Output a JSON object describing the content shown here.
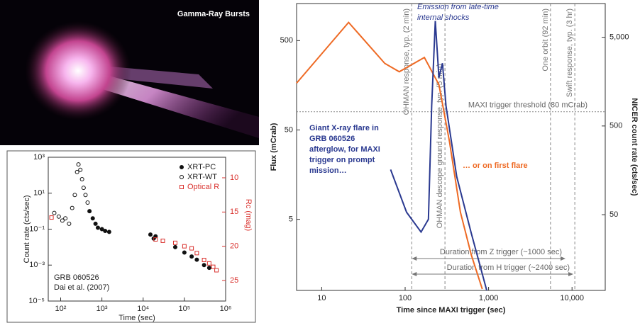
{
  "image": {
    "title": "Gamma-Ray Bursts"
  },
  "chart_data": [
    {
      "type": "scatter",
      "xlabel": "Time (sec)",
      "ylabel": "Count rate (cts/sec)",
      "y2label": "Rc (mag)",
      "annotations": [
        "GRB 060526",
        "Dai et al. (2007)"
      ],
      "xscale": "log",
      "yscale": "log",
      "xlim": [
        50,
        1000000
      ],
      "xticks": [
        {
          "value": 100,
          "label": "10²"
        },
        {
          "value": 1000,
          "label": "10³"
        },
        {
          "value": 10000,
          "label": "10⁴"
        },
        {
          "value": 100000,
          "label": "10⁵"
        },
        {
          "value": 1000000,
          "label": "10⁶"
        }
      ],
      "ylim": [
        1e-05,
        1000
      ],
      "yticks": [
        {
          "value": 1000,
          "label": "10³"
        },
        {
          "value": 10,
          "label": "10¹"
        },
        {
          "value": 0.1,
          "label": "10⁻¹"
        },
        {
          "value": 0.001,
          "label": "10⁻³"
        },
        {
          "value": 1e-05,
          "label": "10⁻⁵"
        }
      ],
      "y2lim": [
        28,
        7
      ],
      "y2ticks": [
        10,
        15,
        20,
        25
      ],
      "y2color": "#d9302c",
      "series": [
        {
          "name": "XRT-PC",
          "color": "#111111",
          "marker": "filled-circle",
          "x": [
            500,
            600,
            700,
            800,
            1000,
            1200,
            1500,
            15000,
            18000,
            20000,
            60000,
            100000,
            150000,
            200000,
            300000,
            400000
          ],
          "values": [
            1,
            0.4,
            0.2,
            0.12,
            0.1,
            0.08,
            0.07,
            0.05,
            0.03,
            0.04,
            0.01,
            0.005,
            0.003,
            0.002,
            0.001,
            0.0007
          ]
        },
        {
          "name": "XRT-WT",
          "color": "#111111",
          "marker": "open-circle",
          "x": [
            70,
            90,
            110,
            130,
            160,
            190,
            220,
            250,
            270,
            300,
            330,
            360,
            400,
            450
          ],
          "values": [
            0.8,
            0.5,
            0.3,
            0.4,
            0.2,
            1.5,
            8,
            150,
            400,
            200,
            60,
            20,
            8,
            3
          ]
        },
        {
          "name": "Optical R",
          "color": "#d9302c",
          "marker": "open-square",
          "axis": "y2",
          "x": [
            60,
            20000,
            30000,
            60000,
            100000,
            150000,
            200000,
            300000,
            400000,
            500000,
            600000
          ],
          "values": [
            15.8,
            19,
            19.2,
            19.5,
            20,
            20.3,
            21,
            22,
            22.5,
            23,
            23.5
          ]
        }
      ]
    },
    {
      "type": "line",
      "xlabel": "Time since MAXI trigger (sec)",
      "ylabel": "Flux (mCrab)",
      "y2label": "NICER count rate (cts/sec)",
      "xscale": "log",
      "yscale": "log",
      "xlim": [
        5,
        25000
      ],
      "xticks": [
        10,
        100,
        {
          "value": 1000,
          "label": "1,000"
        },
        {
          "value": 10000,
          "label": "10,000"
        }
      ],
      "ylim": [
        0.8,
        1300
      ],
      "yticks": [
        5,
        50,
        500
      ],
      "y2lim": [
        7,
        12000
      ],
      "y2ticks": [
        50,
        500,
        {
          "value": 5000,
          "label": "5,000"
        }
      ],
      "series": [
        {
          "color": "#ee6a24",
          "x": [
            5,
            21,
            57,
            85,
            170,
            254,
            340,
            460,
            620,
            840
          ],
          "values": [
            167,
            800,
            278,
            224,
            324,
            161,
            37,
            6,
            2,
            0.83
          ]
        },
        {
          "color": "#2a3990",
          "x": [
            67,
            104,
            155,
            190,
            208,
            230,
            254,
            280,
            309,
            415,
            620,
            950
          ],
          "values": [
            18,
            6,
            3.6,
            5,
            93,
            830,
            193,
            279,
            93,
            15,
            3.5,
            0.8
          ]
        }
      ],
      "vlines": [
        {
          "value": 120,
          "label": "OHMAN response, typ. (2 min)"
        },
        {
          "value": 300,
          "label": "OHMAN descope ground response, typ. (5 min)"
        },
        {
          "value": 5520,
          "label": "One orbit (92 min)"
        },
        {
          "value": 10800,
          "label": "Swift response, typ. (3 hr)"
        }
      ],
      "threshold": {
        "value": 80,
        "label": "MAXI trigger threshold (80 mCrab)"
      },
      "durations": [
        "Duration from Z trigger (~1000 sec)",
        "Duration from H trigger (~2400 sec)"
      ],
      "annotations": [
        {
          "lines": [
            "Emission from late-time",
            "internal shocks"
          ],
          "color": "#2a3990"
        },
        {
          "lines": [
            "Giant X-ray flare in",
            "GRB 060526",
            "afterglow, for MAXI",
            "trigger on prompt",
            "mission…"
          ],
          "color": "#2a3990"
        },
        {
          "lines": [
            "… or on first flare"
          ],
          "color": "#ee6a24"
        }
      ]
    }
  ]
}
